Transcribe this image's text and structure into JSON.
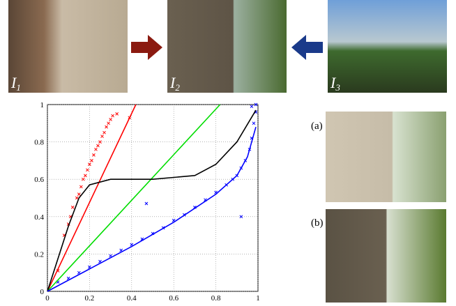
{
  "images": [
    {
      "label": "I",
      "subscript": "1"
    },
    {
      "label": "I",
      "subscript": "2"
    },
    {
      "label": "I",
      "subscript": "3"
    }
  ],
  "panels": [
    "(a)",
    "(b)"
  ],
  "chart_data": {
    "type": "scatter",
    "xlim": [
      0,
      1
    ],
    "ylim": [
      0,
      1
    ],
    "xticks": [
      0,
      0.2,
      0.4,
      0.6,
      0.8,
      1
    ],
    "yticks": [
      0,
      0.2,
      0.4,
      0.6,
      0.8,
      1
    ],
    "grid": true,
    "series": [
      {
        "color": "#ff0000",
        "mode": "markers",
        "x": [
          0.05,
          0.08,
          0.1,
          0.11,
          0.12,
          0.14,
          0.15,
          0.16,
          0.17,
          0.18,
          0.19,
          0.2,
          0.21,
          0.22,
          0.23,
          0.24,
          0.25,
          0.26,
          0.27,
          0.28,
          0.29,
          0.3,
          0.31,
          0.33,
          0.39
        ],
        "y": [
          0.11,
          0.3,
          0.36,
          0.4,
          0.45,
          0.5,
          0.52,
          0.56,
          0.6,
          0.62,
          0.65,
          0.68,
          0.7,
          0.73,
          0.76,
          0.78,
          0.8,
          0.83,
          0.85,
          0.88,
          0.9,
          0.92,
          0.94,
          0.95,
          0.93
        ]
      },
      {
        "color": "#0000ff",
        "mode": "markers",
        "x": [
          0.05,
          0.1,
          0.15,
          0.2,
          0.25,
          0.3,
          0.35,
          0.4,
          0.45,
          0.47,
          0.5,
          0.55,
          0.6,
          0.65,
          0.7,
          0.75,
          0.8,
          0.85,
          0.88,
          0.9,
          0.92,
          0.92,
          0.94,
          0.96,
          0.97,
          0.97,
          0.98,
          0.99,
          0.99
        ],
        "y": [
          0.05,
          0.07,
          0.1,
          0.13,
          0.16,
          0.19,
          0.22,
          0.25,
          0.28,
          0.47,
          0.31,
          0.34,
          0.38,
          0.41,
          0.45,
          0.49,
          0.53,
          0.57,
          0.6,
          0.62,
          0.4,
          0.66,
          0.7,
          0.76,
          0.82,
          0.99,
          0.9,
          0.96,
          1.0
        ]
      },
      {
        "color": "#ff0000",
        "mode": "line",
        "x": [
          0,
          0.42
        ],
        "y": [
          0,
          1
        ]
      },
      {
        "color": "#00dd00",
        "mode": "line",
        "x": [
          0,
          0.82
        ],
        "y": [
          0,
          1
        ]
      },
      {
        "color": "#000000",
        "mode": "line",
        "x": [
          0,
          0.1,
          0.15,
          0.2,
          0.3,
          0.5,
          0.7,
          0.8,
          0.9,
          0.99
        ],
        "y": [
          0,
          0.35,
          0.5,
          0.57,
          0.6,
          0.6,
          0.62,
          0.68,
          0.8,
          0.97
        ]
      },
      {
        "color": "#0000ff",
        "mode": "line",
        "x": [
          0,
          0.2,
          0.4,
          0.6,
          0.8,
          0.9,
          0.95,
          0.99
        ],
        "y": [
          0,
          0.12,
          0.24,
          0.37,
          0.52,
          0.62,
          0.72,
          0.88
        ]
      }
    ]
  }
}
